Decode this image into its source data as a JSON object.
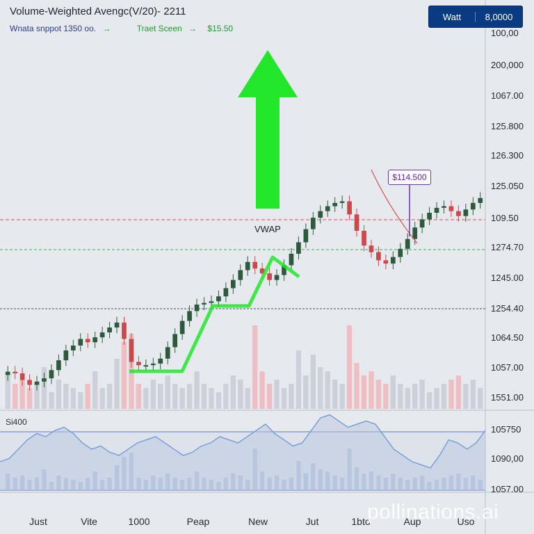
{
  "header": {
    "title": "Volume-Weighted Avengc(V/20)- 2211",
    "legend_left": "Wnata snppot 1350 oo.",
    "legend_mid": "Traet Sceen",
    "legend_right": "$15.50"
  },
  "top_button": {
    "left": "Watt",
    "right": "8,0000"
  },
  "annotations": {
    "vwap": "VWAP",
    "price_tag": "$114.500",
    "subpanel": "Si400",
    "watermark": "pollinations.ai"
  },
  "colors": {
    "up": "#2d5a3a",
    "down": "#c84a4a",
    "arrow": "#22e62a",
    "trend": "#22e62a",
    "vwap_red": "#d9534f",
    "vwap_green": "#37b24d",
    "dark_line": "#4a4f5a",
    "osc": "#7aa0d8",
    "tag": "#6b2fcf"
  },
  "chart_data": {
    "type": "candlestick",
    "title": "Volume-Weighted Avengc(V/20)- 2211",
    "y_axis_labels": [
      "100,00",
      "200,000",
      "1067.00",
      "125.800",
      "126.300",
      "125.050",
      "109.50",
      "1274.70",
      "1245.00",
      "1254.40",
      "1064.50",
      "1057.00",
      "1551.00"
    ],
    "sub_axis_labels": [
      "105750",
      "1090,00",
      "1057.00"
    ],
    "x_labels": [
      "Just",
      "Vite",
      "1000",
      "Peap",
      "New",
      "Jut",
      "1bto",
      "Aup",
      "Uso"
    ],
    "closes": [
      1.5,
      1.4,
      1.0,
      0.7,
      0.9,
      1.1,
      1.6,
      2.2,
      2.8,
      3.1,
      3.5,
      3.3,
      3.6,
      3.9,
      4.2,
      4.5,
      3.5,
      2.1,
      1.9,
      1.9,
      2.0,
      2.3,
      3.0,
      3.8,
      4.6,
      5.2,
      5.6,
      5.7,
      5.8,
      6.1,
      6.6,
      7.1,
      7.7,
      8.2,
      7.8,
      7.5,
      7.1,
      7.4,
      8.0,
      8.7,
      9.4,
      10.2,
      10.9,
      11.3,
      11.6,
      11.8,
      11.9,
      11.1,
      10.1,
      9.2,
      8.8,
      8.3,
      8.1,
      8.5,
      9.0,
      9.6,
      10.3,
      10.8,
      11.2,
      11.5,
      11.6,
      11.3,
      11.0,
      11.4,
      11.8,
      12.1
    ],
    "volumes": [
      0.4,
      0.3,
      0.35,
      0.25,
      0.3,
      0.5,
      0.2,
      0.35,
      0.3,
      0.25,
      0.2,
      0.3,
      0.45,
      0.25,
      0.3,
      0.6,
      0.8,
      0.9,
      0.3,
      0.25,
      0.35,
      0.3,
      0.4,
      0.3,
      0.25,
      0.3,
      0.45,
      0.3,
      0.25,
      0.2,
      0.3,
      0.4,
      0.35,
      0.25,
      1.0,
      0.45,
      0.3,
      0.35,
      0.25,
      0.3,
      0.7,
      0.4,
      0.65,
      0.5,
      0.45,
      0.35,
      0.3,
      1.0,
      0.55,
      0.4,
      0.45,
      0.35,
      0.3,
      0.4,
      0.3,
      0.25,
      0.3,
      0.35,
      0.2,
      0.25,
      0.3,
      0.35,
      0.4,
      0.3,
      0.35,
      0.25
    ],
    "oscillator": [
      0.4,
      0.45,
      0.6,
      0.75,
      0.85,
      0.8,
      0.9,
      0.95,
      0.85,
      0.7,
      0.6,
      0.65,
      0.55,
      0.5,
      0.6,
      0.7,
      0.75,
      0.8,
      0.7,
      0.6,
      0.5,
      0.55,
      0.65,
      0.7,
      0.8,
      0.75,
      0.7,
      0.8,
      0.9,
      1.0,
      0.85,
      0.75,
      0.65,
      0.7,
      0.9,
      1.1,
      1.15,
      1.05,
      0.95,
      1.0,
      1.05,
      1.0,
      0.8,
      0.6,
      0.5,
      0.4,
      0.35,
      0.3,
      0.5,
      0.75,
      0.7,
      0.6,
      0.7,
      0.9
    ],
    "trend_line": [
      [
        0,
        1.9
      ],
      [
        1,
        1.9
      ],
      [
        2,
        3.8
      ],
      [
        3,
        3.8
      ],
      [
        4,
        5.8
      ],
      [
        5,
        5.4
      ]
    ],
    "grid": false
  }
}
